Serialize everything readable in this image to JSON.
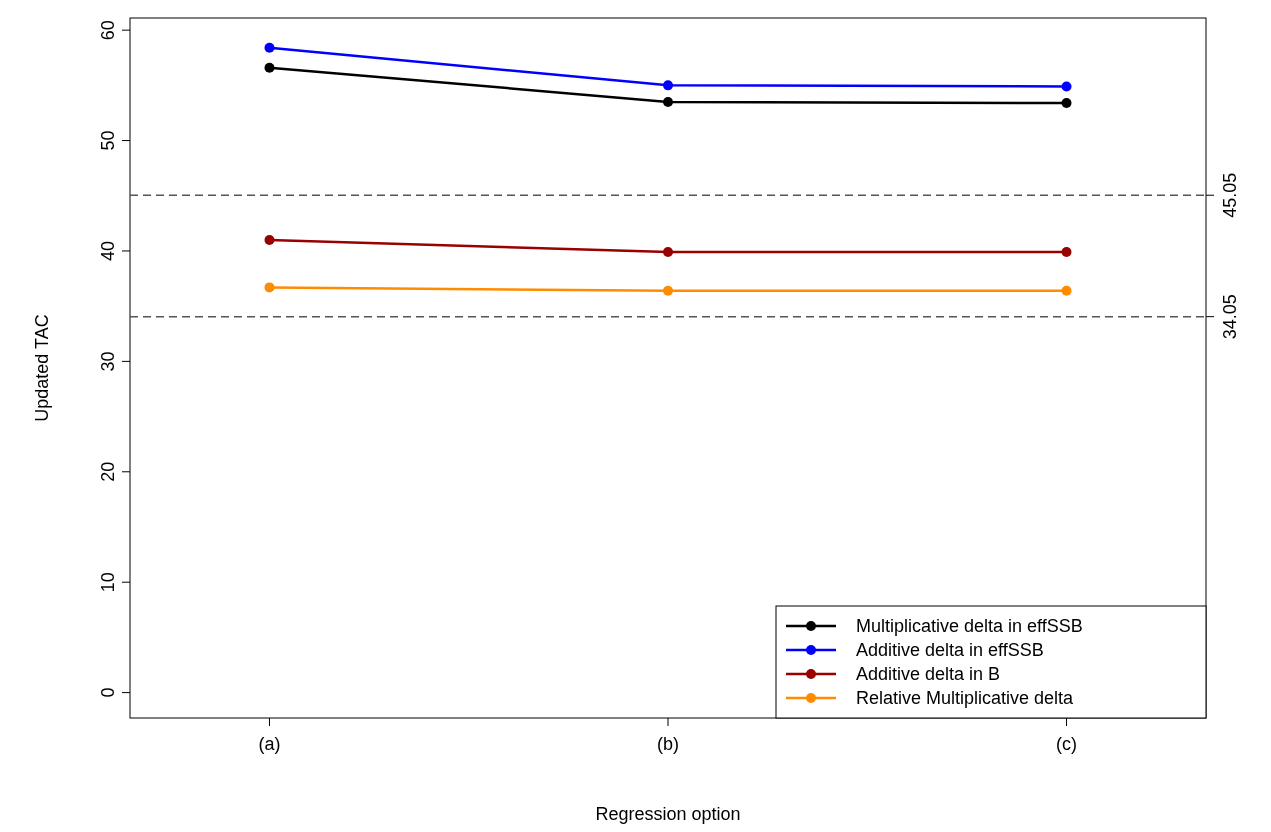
{
  "chart_data": {
    "type": "line",
    "xlabel": "Regression option",
    "ylabel": "Updated TAC",
    "categories": [
      "(a)",
      "(b)",
      "(c)"
    ],
    "series": [
      {
        "name": "Multiplicative delta in effSSB",
        "color": "#000000",
        "values": [
          56.6,
          53.5,
          53.4
        ]
      },
      {
        "name": "Additive delta in effSSB",
        "color": "#0000ff",
        "values": [
          58.4,
          55.0,
          54.9
        ]
      },
      {
        "name": "Additive delta in B",
        "color": "#990000",
        "values": [
          41.0,
          39.9,
          39.9
        ]
      },
      {
        "name": "Relative Multiplicative delta",
        "color": "#ff8c00",
        "values": [
          36.7,
          36.4,
          36.4
        ]
      }
    ],
    "ylim": [
      -2.3,
      61.1
    ],
    "yticks": [
      0,
      10,
      20,
      30,
      40,
      50,
      60
    ],
    "y2lim": [
      -2.3,
      61.1
    ],
    "y2ticks": [
      34.05,
      45.05
    ],
    "ref_lines": [
      {
        "axis": "y",
        "value": 45.05,
        "color": "#555555",
        "line_style": "dashed"
      },
      {
        "axis": "y",
        "value": 34.05,
        "color": "#555555",
        "line_style": "dashed"
      }
    ],
    "grid": false,
    "legend": "bottom right",
    "marker": "circle",
    "line_style": "solid"
  }
}
